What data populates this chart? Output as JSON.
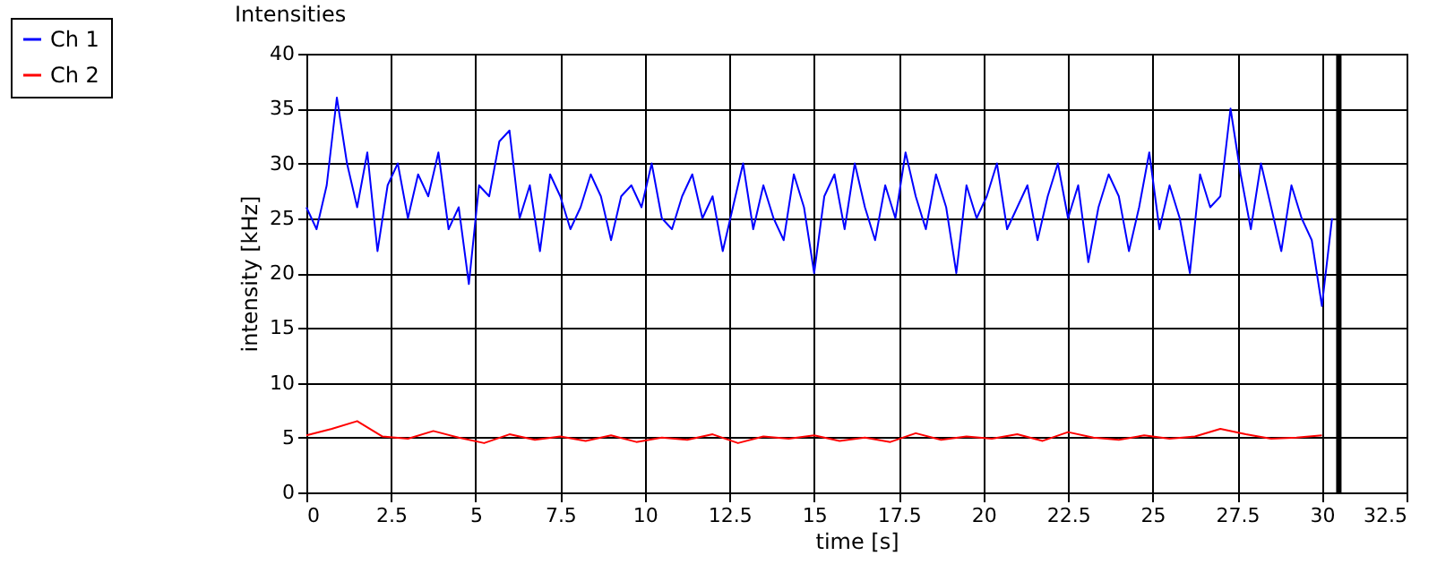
{
  "chart_data": {
    "type": "line",
    "title": "Intensities",
    "xlabel": "time [s]",
    "ylabel": "intensity [kHz]",
    "xlim": [
      0,
      32.5
    ],
    "xticks": [
      0,
      2.5,
      5,
      7.5,
      10,
      12.5,
      15,
      17.5,
      20,
      22.5,
      25,
      27.5,
      30,
      32.5
    ],
    "ylim": [
      0,
      40
    ],
    "yticks": [
      0,
      5,
      10,
      15,
      20,
      25,
      30,
      35,
      40
    ],
    "grid": true,
    "legend": "top left",
    "line_style": "solid",
    "marker": "none",
    "ref_lines": [
      {
        "axis": "x",
        "value": 30.5,
        "color": "#000000"
      }
    ],
    "series": [
      {
        "name": "Ch 1",
        "color": "#0000ff",
        "x": [
          0,
          0.3,
          0.6,
          0.9,
          1.2,
          1.5,
          1.8,
          2.1,
          2.4,
          2.7,
          3,
          3.3,
          3.6,
          3.9,
          4.2,
          4.5,
          4.8,
          5.1,
          5.4,
          5.7,
          6,
          6.3,
          6.6,
          6.9,
          7.2,
          7.5,
          7.8,
          8.1,
          8.4,
          8.7,
          9,
          9.3,
          9.6,
          9.9,
          10.2,
          10.5,
          10.8,
          11.1,
          11.4,
          11.7,
          12,
          12.3,
          12.6,
          12.9,
          13.2,
          13.5,
          13.8,
          14.1,
          14.4,
          14.7,
          15,
          15.3,
          15.6,
          15.9,
          16.2,
          16.5,
          16.8,
          17.1,
          17.4,
          17.7,
          18,
          18.3,
          18.6,
          18.9,
          19.2,
          19.5,
          19.8,
          20.1,
          20.4,
          20.7,
          21,
          21.3,
          21.6,
          21.9,
          22.2,
          22.5,
          22.8,
          23.1,
          23.4,
          23.7,
          24,
          24.3,
          24.6,
          24.9,
          25.2,
          25.5,
          25.8,
          26.1,
          26.4,
          26.7,
          27,
          27.3,
          27.6,
          27.9,
          28.2,
          28.5,
          28.8,
          29.1,
          29.4,
          29.7,
          30,
          30.3
        ],
        "values": [
          26,
          24,
          28,
          36,
          30,
          26,
          31,
          22,
          28,
          30,
          25,
          29,
          27,
          31,
          24,
          26,
          19,
          28,
          27,
          32,
          33,
          25,
          28,
          22,
          29,
          27,
          24,
          26,
          29,
          27,
          23,
          27,
          28,
          26,
          30,
          25,
          24,
          27,
          29,
          25,
          27,
          22,
          26,
          30,
          24,
          28,
          25,
          23,
          29,
          26,
          20,
          27,
          29,
          24,
          30,
          26,
          23,
          28,
          25,
          31,
          27,
          24,
          29,
          26,
          20,
          28,
          25,
          27,
          30,
          24,
          26,
          28,
          23,
          27,
          30,
          25,
          28,
          21,
          26,
          29,
          27,
          22,
          26,
          31,
          24,
          28,
          25,
          20,
          29,
          26,
          27,
          35,
          29,
          24,
          30,
          26,
          22,
          28,
          25,
          23,
          17,
          25
        ]
      },
      {
        "name": "Ch 2",
        "color": "#ff0000",
        "x": [
          0,
          0.75,
          1.5,
          2.25,
          3,
          3.75,
          4.5,
          5.25,
          6,
          6.75,
          7.5,
          8.25,
          9,
          9.75,
          10.5,
          11.25,
          12,
          12.75,
          13.5,
          14.25,
          15,
          15.75,
          16.5,
          17.25,
          18,
          18.75,
          19.5,
          20.25,
          21,
          21.75,
          22.5,
          23.25,
          24,
          24.75,
          25.5,
          26.25,
          27,
          27.75,
          28.5,
          29.25,
          30
        ],
        "values": [
          5.2,
          5.8,
          6.5,
          5.1,
          4.9,
          5.6,
          5.0,
          4.5,
          5.3,
          4.8,
          5.1,
          4.7,
          5.2,
          4.6,
          5.0,
          4.8,
          5.3,
          4.5,
          5.1,
          4.9,
          5.2,
          4.7,
          5.0,
          4.6,
          5.4,
          4.8,
          5.1,
          4.9,
          5.3,
          4.7,
          5.5,
          5.0,
          4.8,
          5.2,
          4.9,
          5.1,
          5.8,
          5.3,
          4.9,
          5.0,
          5.2
        ]
      }
    ]
  }
}
